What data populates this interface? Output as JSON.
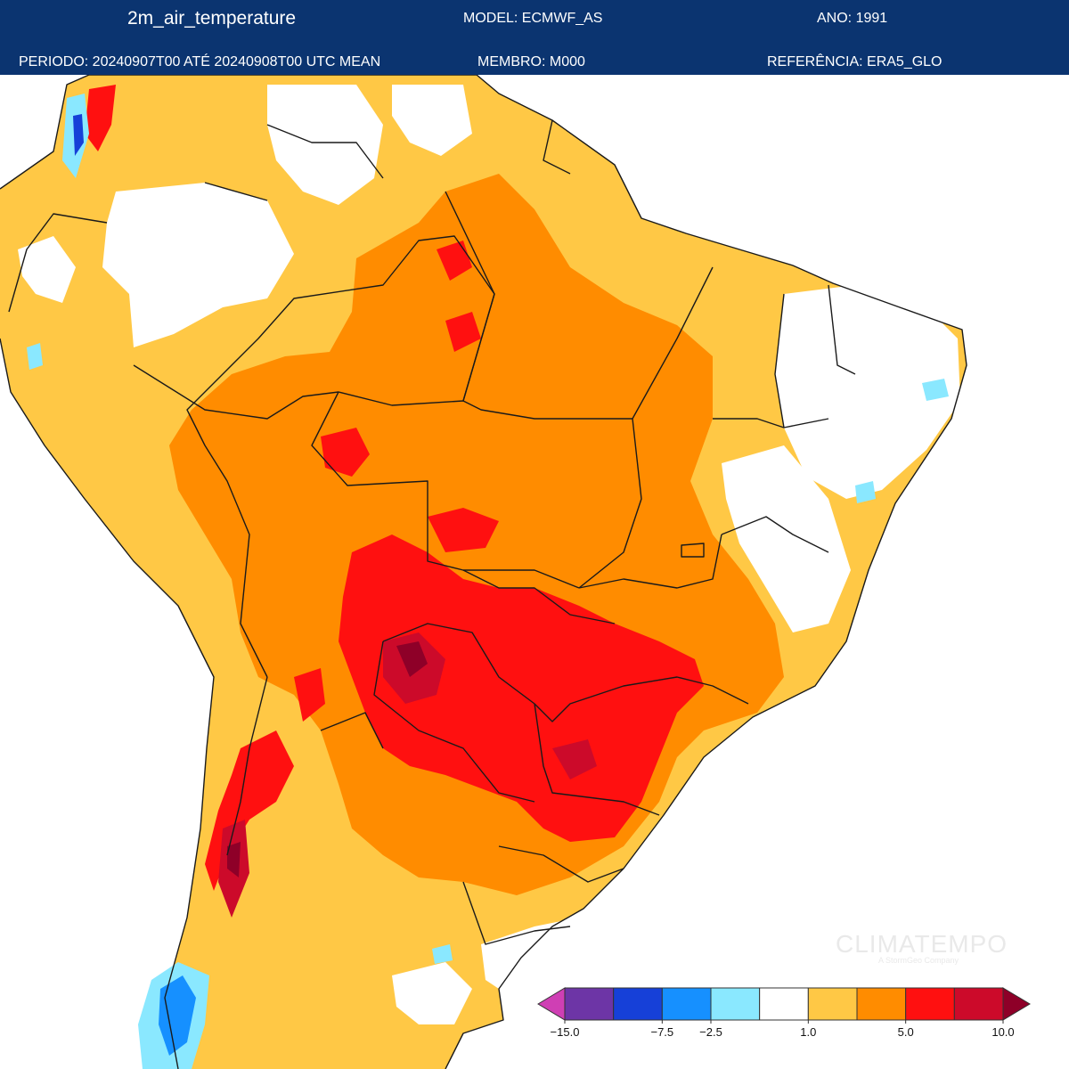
{
  "header": {
    "variable": "2m_air_temperature",
    "model": "MODEL: ECMWF_AS",
    "year": "ANO: 1991",
    "period": "PERIODO: 20240907T00 ATÉ 20240908T00 UTC MEAN",
    "member": "MEMBRO: M000",
    "reference": "REFERÊNCIA: ERA5_GLO"
  },
  "colors": {
    "header_bg": "#0b3470",
    "ocean": "#ffffff",
    "border": "#1a1a1a"
  },
  "legend": {
    "bins": [
      "#cf3fb4",
      "#6d35a6",
      "#1640d8",
      "#1690ff",
      "#8ae8ff",
      "#ffffff",
      "#ffc845",
      "#ff8c00",
      "#ff1010",
      "#cc0a2a",
      "#8e0028"
    ],
    "tick_labels": [
      "−15.0",
      "−7.5",
      "−2.5",
      "1.0",
      "5.0",
      "10.0"
    ]
  },
  "watermark": {
    "brand": "CLIMATEMPO",
    "tagline": "A StormGeo Company"
  }
}
